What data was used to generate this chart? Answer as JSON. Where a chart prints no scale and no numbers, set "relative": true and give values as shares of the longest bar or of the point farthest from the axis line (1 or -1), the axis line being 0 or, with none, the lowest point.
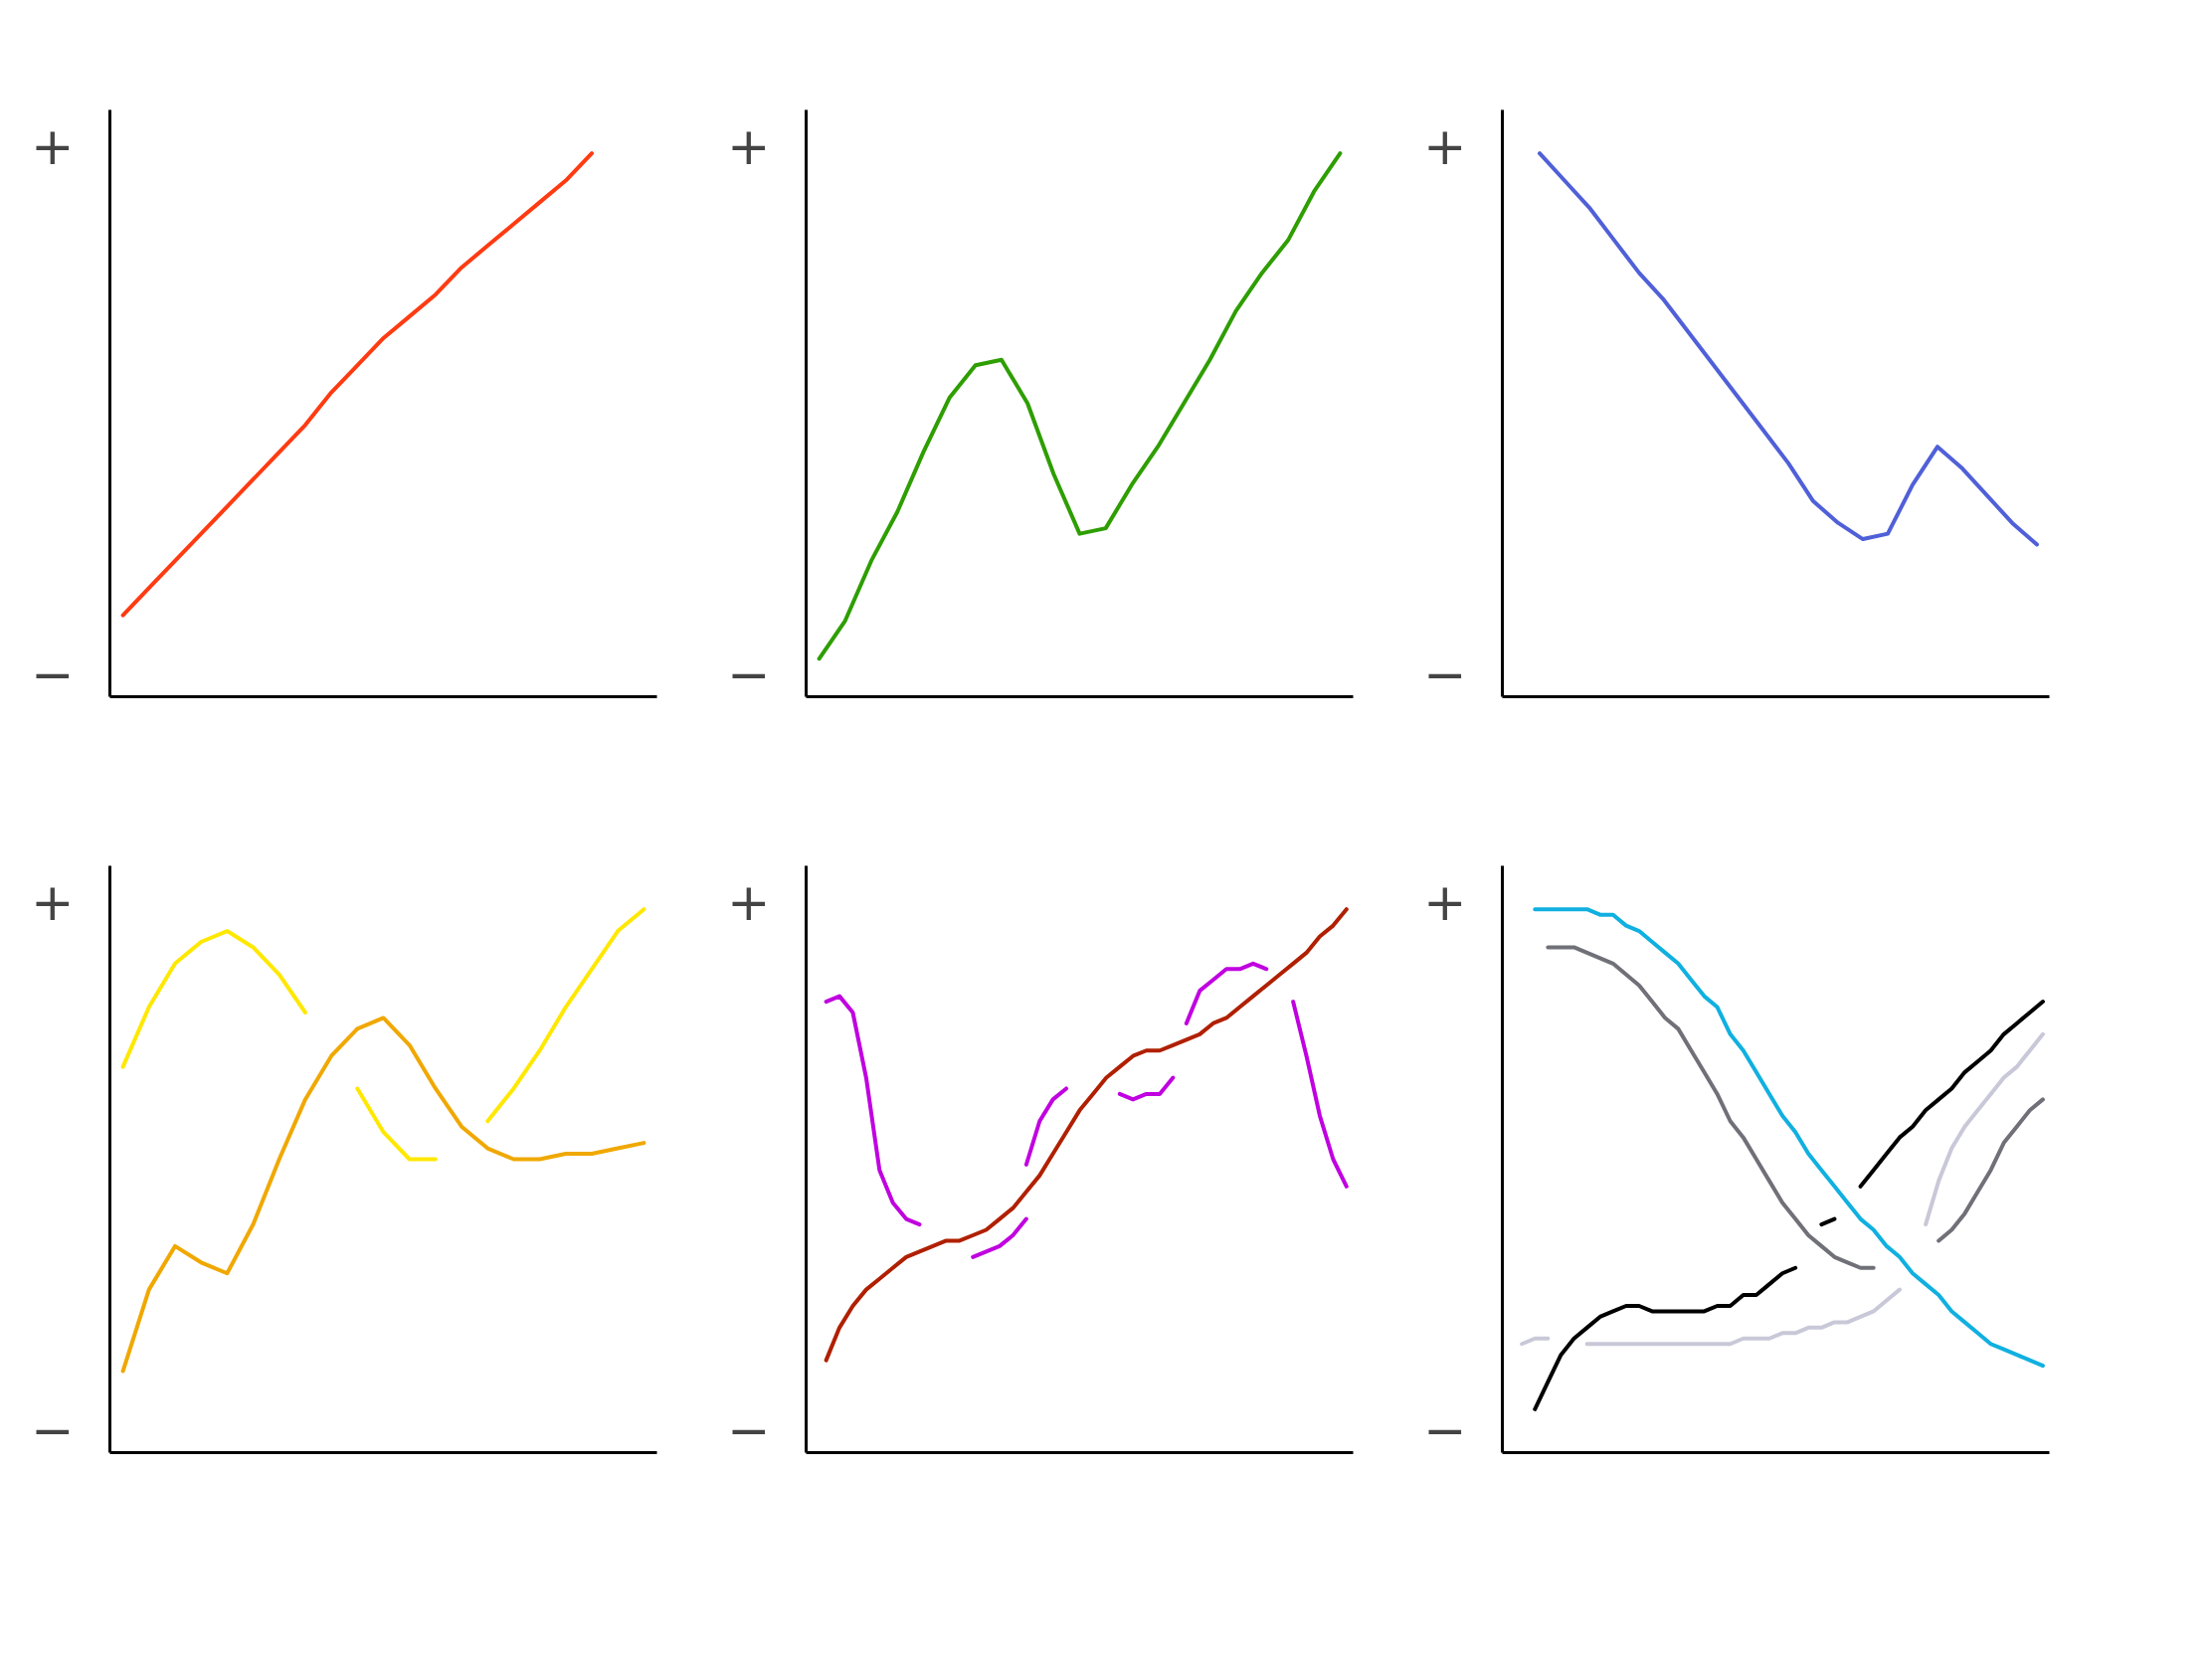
{
  "chart_data": [
    {
      "type": "line",
      "relative": true,
      "annotations": [
        "+",
        "−"
      ],
      "categories": [
        null,
        null,
        null,
        null,
        null,
        null,
        null,
        null,
        null,
        null,
        null,
        null,
        null,
        null,
        null,
        null,
        null,
        null,
        null,
        null,
        null
      ],
      "series": [
        {
          "color": "#ff3b12",
          "values": [
            0.15,
            0.2,
            0.25,
            0.3,
            0.35,
            0.4,
            0.45,
            0.5,
            0.56,
            0.61,
            0.66,
            0.7,
            0.74,
            0.79,
            0.83,
            0.87,
            0.91,
            0.95,
            1.0,
            null,
            null
          ]
        }
      ]
    },
    {
      "type": "line",
      "relative": true,
      "annotations": [
        "+",
        "−"
      ],
      "categories": [
        null,
        null,
        null,
        null,
        null,
        null,
        null,
        null,
        null,
        null,
        null,
        null,
        null,
        null,
        null,
        null,
        null,
        null,
        null,
        null,
        null
      ],
      "series": [
        {
          "color": "#2e9e00",
          "values": [
            0.07,
            0.14,
            0.25,
            0.34,
            0.45,
            0.55,
            0.61,
            0.62,
            0.54,
            0.41,
            0.3,
            0.31,
            0.39,
            0.46,
            0.54,
            0.62,
            0.71,
            0.78,
            0.84,
            0.93,
            1.0
          ]
        }
      ]
    },
    {
      "type": "line",
      "relative": true,
      "annotations": [
        "+",
        "−"
      ],
      "categories": [
        null,
        null,
        null,
        null,
        null,
        null,
        null,
        null,
        null,
        null,
        null,
        null,
        null,
        null,
        null,
        null,
        null,
        null,
        null,
        null,
        null,
        null
      ],
      "series": [
        {
          "color": "#5060d8",
          "values": [
            null,
            1.0,
            0.95,
            0.9,
            0.84,
            0.78,
            0.73,
            0.67,
            0.61,
            0.55,
            0.49,
            0.43,
            0.36,
            0.32,
            0.29,
            0.3,
            0.39,
            0.46,
            0.42,
            0.37,
            0.32,
            0.28
          ]
        }
      ]
    },
    {
      "type": "line",
      "relative": true,
      "annotations": [
        "+",
        "−"
      ],
      "categories": [
        null,
        null,
        null,
        null,
        null,
        null,
        null,
        null,
        null,
        null,
        null,
        null,
        null,
        null,
        null,
        null,
        null,
        null,
        null,
        null,
        null
      ],
      "series": [
        {
          "color": "#ffe800",
          "values": [
            0.71,
            0.82,
            0.9,
            0.94,
            0.96,
            0.93,
            0.88,
            0.81,
            null,
            0.67,
            0.59,
            0.54,
            0.54,
            null,
            0.61,
            0.67,
            0.74,
            0.82,
            0.89,
            0.96,
            1.0
          ]
        },
        {
          "color": "#f0a800",
          "values": [
            0.15,
            0.3,
            0.38,
            0.35,
            0.33,
            0.42,
            0.54,
            0.65,
            0.73,
            0.78,
            0.8,
            0.75,
            0.67,
            0.6,
            0.56,
            0.54,
            0.54,
            0.55,
            0.55,
            0.56,
            0.57
          ]
        }
      ]
    },
    {
      "type": "line",
      "relative": true,
      "annotations": [
        "+",
        "−"
      ],
      "categories": [
        null,
        null,
        null,
        null,
        null,
        null,
        null,
        null,
        null,
        null,
        null,
        null,
        null,
        null,
        null,
        null,
        null,
        null,
        null,
        null,
        null,
        null,
        null,
        null,
        null,
        null,
        null,
        null,
        null,
        null,
        null,
        null,
        null,
        null,
        null,
        null,
        null,
        null,
        null,
        null,
        null
      ],
      "series": [
        {
          "color": "#b02000",
          "values": [
            null,
            0.17,
            0.23,
            0.27,
            0.3,
            0.32,
            0.34,
            0.36,
            0.37,
            0.38,
            0.39,
            0.39,
            0.4,
            0.41,
            0.43,
            0.45,
            0.48,
            0.51,
            0.55,
            0.59,
            0.63,
            0.66,
            0.69,
            0.71,
            0.73,
            0.74,
            0.74,
            0.75,
            0.76,
            0.77,
            0.79,
            0.8,
            0.82,
            0.84,
            0.86,
            0.88,
            0.9,
            0.92,
            0.95,
            0.97,
            1.0
          ]
        },
        {
          "color": "#c000e0",
          "values": [
            null,
            0.83,
            0.84,
            0.81,
            0.69,
            0.52,
            0.46,
            0.43,
            0.42,
            null,
            null,
            null,
            null,
            null,
            null,
            null,
            null,
            null,
            null,
            null,
            null,
            null,
            null,
            null,
            null,
            null,
            null,
            null,
            null,
            null,
            null,
            null,
            null,
            null,
            null,
            null,
            null,
            null,
            null,
            null,
            null
          ]
        },
        {
          "color": "#c000e0",
          "values": [
            null,
            null,
            null,
            null,
            null,
            null,
            null,
            null,
            null,
            null,
            null,
            null,
            0.36,
            0.37,
            0.38,
            0.4,
            0.43,
            null,
            null,
            null,
            null,
            null,
            null,
            null,
            null,
            null,
            null,
            null,
            null,
            null,
            null,
            null,
            null,
            null,
            null,
            null,
            null,
            null,
            null,
            null,
            null
          ]
        },
        {
          "color": "#c000e0",
          "values": [
            null,
            null,
            null,
            null,
            null,
            null,
            null,
            null,
            null,
            null,
            null,
            null,
            null,
            null,
            null,
            null,
            0.53,
            0.61,
            0.65,
            0.67,
            null,
            null,
            null,
            null,
            null,
            null,
            null,
            null,
            null,
            null,
            null,
            null,
            null,
            null,
            null,
            null,
            null,
            null,
            null,
            null,
            null
          ]
        },
        {
          "color": "#c000e0",
          "values": [
            null,
            null,
            null,
            null,
            null,
            null,
            null,
            null,
            null,
            null,
            null,
            null,
            null,
            null,
            null,
            null,
            null,
            null,
            null,
            null,
            null,
            null,
            null,
            0.66,
            0.65,
            0.66,
            0.66,
            0.69,
            null,
            null,
            null,
            null,
            null,
            null,
            null,
            null,
            null,
            null,
            null,
            null,
            null
          ]
        },
        {
          "color": "#c000e0",
          "values": [
            null,
            null,
            null,
            null,
            null,
            null,
            null,
            null,
            null,
            null,
            null,
            null,
            null,
            null,
            null,
            null,
            null,
            null,
            null,
            null,
            null,
            null,
            null,
            null,
            null,
            null,
            null,
            null,
            0.79,
            0.85,
            0.87,
            0.89,
            0.89,
            0.9,
            0.89,
            null,
            null,
            null,
            null,
            null,
            null
          ]
        },
        {
          "color": "#c000e0",
          "values": [
            null,
            null,
            null,
            null,
            null,
            null,
            null,
            null,
            null,
            null,
            null,
            null,
            null,
            null,
            null,
            null,
            null,
            null,
            null,
            null,
            null,
            null,
            null,
            null,
            null,
            null,
            null,
            null,
            null,
            null,
            null,
            null,
            null,
            null,
            null,
            null,
            0.83,
            0.73,
            0.62,
            0.54,
            0.49
          ]
        }
      ]
    },
    {
      "type": "line",
      "relative": true,
      "annotations": [
        "+",
        "−"
      ],
      "categories": [
        null,
        null,
        null,
        null,
        null,
        null,
        null,
        null,
        null,
        null,
        null,
        null,
        null,
        null,
        null,
        null,
        null,
        null,
        null,
        null,
        null,
        null,
        null,
        null,
        null,
        null,
        null,
        null,
        null,
        null,
        null,
        null,
        null,
        null,
        null,
        null,
        null,
        null,
        null,
        null,
        null,
        null
      ],
      "series": [
        {
          "color": "#10b0e0",
          "values": [
            null,
            null,
            1.0,
            1.0,
            1.0,
            1.0,
            1.0,
            0.99,
            0.99,
            0.97,
            0.96,
            0.94,
            0.92,
            0.9,
            0.87,
            0.84,
            0.82,
            0.77,
            0.74,
            0.7,
            0.66,
            0.62,
            0.59,
            0.55,
            0.52,
            0.49,
            0.46,
            0.43,
            0.41,
            0.38,
            0.36,
            0.33,
            0.31,
            0.29,
            0.26,
            0.24,
            0.22,
            0.2,
            0.19,
            0.18,
            0.17,
            0.16
          ]
        },
        {
          "color": "#707078",
          "values": [
            null,
            null,
            null,
            0.93,
            0.93,
            0.93,
            0.92,
            0.91,
            0.9,
            0.88,
            0.86,
            0.83,
            0.8,
            0.78,
            0.74,
            0.7,
            0.66,
            0.61,
            0.58,
            0.54,
            0.5,
            0.46,
            0.43,
            0.4,
            0.38,
            0.36,
            0.35,
            0.34,
            0.34,
            null,
            null,
            null,
            null,
            0.39,
            0.41,
            0.44,
            0.48,
            0.52,
            0.57,
            0.6,
            0.63,
            0.65
          ]
        },
        {
          "color": "#000000",
          "values": [
            null,
            null,
            0.08,
            0.13,
            0.18,
            0.21,
            0.23,
            0.25,
            0.26,
            0.27,
            0.27,
            0.26,
            0.26,
            0.26,
            0.26,
            0.26,
            0.27,
            0.27,
            0.29,
            0.29,
            0.31,
            0.33,
            0.34,
            null,
            0.42,
            0.43,
            null,
            0.49,
            0.52,
            0.55,
            0.58,
            0.6,
            0.63,
            0.65,
            0.67,
            0.7,
            0.72,
            0.74,
            0.77,
            0.79,
            0.81,
            0.83
          ]
        },
        {
          "color": "#c8c8d8",
          "values": [
            null,
            0.2,
            0.21,
            0.21,
            null,
            null,
            0.2,
            0.2,
            0.2,
            0.2,
            0.2,
            0.2,
            0.2,
            0.2,
            0.2,
            0.2,
            0.2,
            0.2,
            0.21,
            0.21,
            0.21,
            0.22,
            0.22,
            0.23,
            0.23,
            0.24,
            0.24,
            0.25,
            0.26,
            0.28,
            0.3,
            null,
            0.42,
            0.5,
            0.56,
            0.6,
            0.63,
            0.66,
            0.69,
            0.71,
            0.74,
            0.77
          ]
        }
      ]
    }
  ]
}
